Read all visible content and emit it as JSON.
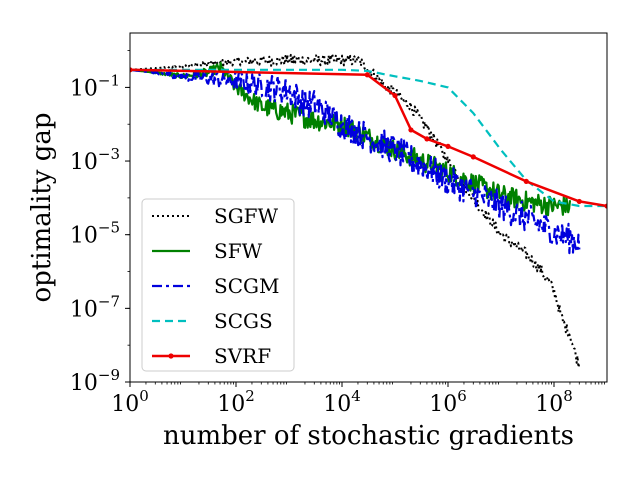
{
  "chart_data": {
    "type": "line",
    "title": "",
    "xlabel": "number of stochastic gradients",
    "ylabel": "optimality gap",
    "xscale": "log",
    "yscale": "log",
    "xlim": [
      1,
      1000000000
    ],
    "ylim": [
      1e-09,
      3
    ],
    "grid": false,
    "legend_position": "center-left",
    "x_ticks": [
      {
        "value": 1,
        "base": "10",
        "exp": "0"
      },
      {
        "value": 100,
        "base": "10",
        "exp": "2"
      },
      {
        "value": 10000,
        "base": "10",
        "exp": "4"
      },
      {
        "value": 1000000,
        "base": "10",
        "exp": "6"
      },
      {
        "value": 100000000,
        "base": "10",
        "exp": "8"
      }
    ],
    "y_ticks": [
      {
        "value": 1e-09,
        "base": "10",
        "exp": "−9"
      },
      {
        "value": 1e-07,
        "base": "10",
        "exp": "−7"
      },
      {
        "value": 1e-05,
        "base": "10",
        "exp": "−5"
      },
      {
        "value": 0.001,
        "base": "10",
        "exp": "−3"
      },
      {
        "value": 0.1,
        "base": "10",
        "exp": "−1"
      }
    ],
    "series": [
      {
        "name": "SGFW",
        "color": "#000000",
        "style": "dotted",
        "noise": 0.15,
        "x": [
          1,
          10,
          100,
          1000,
          10000,
          20000,
          30000,
          60000,
          100000,
          200000,
          400000,
          1000000,
          3000000,
          10000000,
          30000000,
          60000000,
          100000000,
          150000000,
          200000000,
          250000000,
          300000000
        ],
        "y": [
          0.3,
          0.38,
          0.5,
          0.55,
          0.55,
          0.55,
          0.35,
          0.12,
          0.07,
          0.03,
          0.008,
          0.001,
          0.0001,
          1e-05,
          3e-06,
          1e-06,
          3e-07,
          4e-08,
          2e-08,
          6e-09,
          3e-09
        ]
      },
      {
        "name": "SFW",
        "color": "#008000",
        "style": "solid",
        "noise": 0.28,
        "x": [
          1,
          3,
          10,
          30,
          50,
          100,
          300,
          1000,
          3000,
          10000,
          100000,
          1000000,
          10000000,
          30000000,
          100000000,
          200000000
        ],
        "y": [
          0.3,
          0.25,
          0.2,
          0.25,
          0.35,
          0.1,
          0.03,
          0.02,
          0.013,
          0.01,
          0.002,
          0.0005,
          0.00012,
          8e-05,
          6e-05,
          6e-05
        ]
      },
      {
        "name": "SCGM",
        "color": "#0000dd",
        "style": "dashdot",
        "noise": 0.4,
        "x": [
          1,
          10,
          100,
          1000,
          2000,
          3000,
          10000,
          100000,
          1000000,
          10000000,
          100000000,
          300000000
        ],
        "y": [
          0.3,
          0.2,
          0.15,
          0.08,
          0.035,
          0.035,
          0.01,
          0.002,
          0.0003,
          6e-05,
          1.2e-05,
          6e-06
        ]
      },
      {
        "name": "SCGS",
        "color": "#00bfbf",
        "style": "dashed",
        "noise": 0,
        "x": [
          1,
          10,
          100,
          1000,
          10000,
          30000,
          100000,
          300000,
          1000000,
          3000000,
          10000000,
          30000000,
          100000000,
          300000000,
          1000000000
        ],
        "y": [
          0.3,
          0.3,
          0.3,
          0.3,
          0.3,
          0.28,
          0.2,
          0.15,
          0.1,
          0.02,
          0.002,
          0.0003,
          8e-05,
          6e-05,
          6e-05
        ]
      },
      {
        "name": "SVRF",
        "color": "#ee0000",
        "style": "solid-marker",
        "noise": 0,
        "x": [
          1,
          30000,
          100000,
          200000,
          400000,
          1000000,
          3000000,
          30000000,
          300000000,
          1000000000
        ],
        "y": [
          0.3,
          0.22,
          0.06,
          0.007,
          0.004,
          0.0025,
          0.0013,
          0.00028,
          8e-05,
          6e-05
        ]
      }
    ]
  }
}
